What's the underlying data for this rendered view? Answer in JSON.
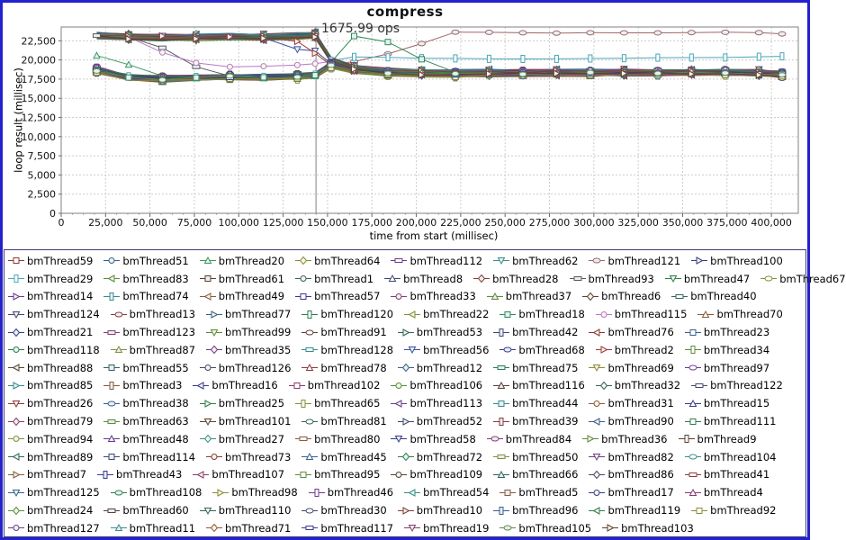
{
  "window": {
    "border_color": "#2421cd",
    "background": "#ffffff",
    "legend_border_color": "#3a3a78"
  },
  "chart_data": {
    "type": "line",
    "title": "compress",
    "xlabel": "time from start (millisec)",
    "ylabel": "loop result (millisec)",
    "xlim": [
      0,
      415000
    ],
    "ylim": [
      0,
      24300
    ],
    "xticks": [
      0,
      25000,
      50000,
      75000,
      100000,
      125000,
      150000,
      175000,
      200000,
      225000,
      250000,
      275000,
      300000,
      325000,
      350000,
      375000,
      400000
    ],
    "yticks": [
      0,
      2500,
      5000,
      7500,
      10000,
      12500,
      15000,
      17500,
      20000,
      22500
    ],
    "grid": "dashed",
    "legend_position": "bottom",
    "marker_line_x": 143500,
    "annotation": {
      "text": "1675.99 ops",
      "x": 146000,
      "y": 23900
    },
    "series_count": 128,
    "sample_times": [
      20000,
      38000,
      57000,
      76000,
      95000,
      114000,
      133000,
      143000,
      152000,
      165000,
      184000,
      203000,
      222000,
      241000,
      260000,
      279000,
      298000,
      317000,
      336000,
      355000,
      374000,
      393000,
      406000
    ],
    "default_clusters": [
      "low",
      "high"
    ],
    "special_series": {
      "2": "green_fall",
      "6": "red_tail",
      "8": "cyan_upper",
      "14": "gray_fall",
      "30": "green_spike",
      "31": "purple",
      "45": "early_drop",
      "47": "red_drop"
    },
    "clusters": {
      "high": {
        "color": null,
        "jitter": 700,
        "points": [
          [
            18000,
            23100
          ],
          [
            24000,
            23400
          ],
          [
            40000,
            22950
          ],
          [
            57000,
            22900
          ],
          [
            76000,
            22950
          ],
          [
            95000,
            23050
          ],
          [
            114000,
            23000
          ],
          [
            133000,
            23100
          ],
          [
            143000,
            23250
          ],
          [
            152000,
            20000
          ],
          [
            165000,
            18950
          ],
          [
            184000,
            18500
          ],
          [
            210000,
            18300
          ],
          [
            250000,
            18350
          ],
          [
            300000,
            18350
          ],
          [
            350000,
            18400
          ],
          [
            380000,
            18450
          ],
          [
            406000,
            18150
          ]
        ]
      },
      "low": {
        "color": null,
        "jitter": 700,
        "points": [
          [
            18000,
            18900
          ],
          [
            24000,
            18300
          ],
          [
            40000,
            17650
          ],
          [
            57000,
            17550
          ],
          [
            76000,
            17700
          ],
          [
            95000,
            17800
          ],
          [
            114000,
            17750
          ],
          [
            133000,
            17900
          ],
          [
            143000,
            18000
          ],
          [
            152000,
            19350
          ],
          [
            165000,
            18650
          ],
          [
            184000,
            18300
          ],
          [
            210000,
            18150
          ],
          [
            250000,
            18250
          ],
          [
            300000,
            18300
          ],
          [
            350000,
            18350
          ],
          [
            380000,
            18400
          ],
          [
            406000,
            18100
          ]
        ]
      },
      "green_fall": {
        "color": "#3c9a5f",
        "jitter": 0,
        "points": [
          [
            20000,
            20600
          ],
          [
            38000,
            19400
          ],
          [
            57000,
            17900
          ],
          [
            76000,
            17650
          ],
          [
            95000,
            17700
          ],
          [
            114000,
            17650
          ],
          [
            133000,
            17800
          ],
          [
            143000,
            17900
          ],
          [
            152000,
            19200
          ],
          [
            165000,
            18600
          ],
          [
            406000,
            18250
          ]
        ]
      },
      "red_tail": {
        "color": "#a06565",
        "jitter": 0,
        "points": [
          [
            20000,
            18900
          ],
          [
            24000,
            18350
          ],
          [
            40000,
            17700
          ],
          [
            57000,
            17600
          ],
          [
            76000,
            17700
          ],
          [
            95000,
            17800
          ],
          [
            114000,
            17750
          ],
          [
            133000,
            17900
          ],
          [
            143000,
            18000
          ],
          [
            152000,
            19400
          ],
          [
            170000,
            19900
          ],
          [
            190000,
            21200
          ],
          [
            205000,
            22300
          ],
          [
            222000,
            23650
          ],
          [
            250000,
            23600
          ],
          [
            275000,
            23500
          ],
          [
            300000,
            23550
          ],
          [
            325000,
            23500
          ],
          [
            350000,
            23550
          ],
          [
            375000,
            23600
          ],
          [
            390000,
            23600
          ],
          [
            406000,
            23400
          ]
        ]
      },
      "cyan_upper": {
        "color": "#4aa6b8",
        "jitter": 0,
        "points": [
          [
            20000,
            19000
          ],
          [
            24000,
            18400
          ],
          [
            40000,
            17800
          ],
          [
            57000,
            17700
          ],
          [
            76000,
            17800
          ],
          [
            95000,
            17850
          ],
          [
            114000,
            17800
          ],
          [
            133000,
            17950
          ],
          [
            143000,
            18100
          ],
          [
            152000,
            19900
          ],
          [
            165000,
            20400
          ],
          [
            200000,
            20250
          ],
          [
            250000,
            20100
          ],
          [
            300000,
            20200
          ],
          [
            350000,
            20300
          ],
          [
            380000,
            20350
          ],
          [
            406000,
            20500
          ]
        ]
      },
      "gray_fall": {
        "color": "#5a5a5a",
        "jitter": 0,
        "points": [
          [
            24000,
            23200
          ],
          [
            47000,
            22900
          ],
          [
            62000,
            20900
          ],
          [
            80000,
            18600
          ],
          [
            95000,
            17900
          ],
          [
            114000,
            17750
          ],
          [
            133000,
            17850
          ],
          [
            143000,
            17950
          ],
          [
            152000,
            19300
          ],
          [
            165000,
            18500
          ],
          [
            406000,
            18200
          ]
        ]
      },
      "green_spike": {
        "color": "#2e8b57",
        "jitter": 0,
        "points": [
          [
            18000,
            18800
          ],
          [
            24000,
            18300
          ],
          [
            40000,
            17650
          ],
          [
            57000,
            17550
          ],
          [
            76000,
            17700
          ],
          [
            95000,
            17800
          ],
          [
            114000,
            17750
          ],
          [
            133000,
            17900
          ],
          [
            143000,
            18000
          ],
          [
            152000,
            19700
          ],
          [
            164000,
            23150
          ],
          [
            187000,
            22250
          ],
          [
            205000,
            19800
          ],
          [
            215000,
            18500
          ],
          [
            230000,
            18300
          ],
          [
            406000,
            18350
          ]
        ]
      },
      "purple": {
        "color": "#b678c8",
        "jitter": 0,
        "points": [
          [
            24000,
            23300
          ],
          [
            40000,
            22900
          ],
          [
            62000,
            20400
          ],
          [
            86000,
            19050
          ],
          [
            110000,
            19150
          ],
          [
            134000,
            19350
          ],
          [
            143000,
            19500
          ],
          [
            152000,
            19800
          ],
          [
            165000,
            18700
          ],
          [
            184000,
            18400
          ],
          [
            406000,
            18300
          ]
        ]
      },
      "early_drop": {
        "color": "#3a4f9f",
        "jitter": 0,
        "points": [
          [
            20000,
            23300
          ],
          [
            76000,
            23000
          ],
          [
            114000,
            22900
          ],
          [
            124000,
            22800
          ],
          [
            133000,
            21400
          ],
          [
            138000,
            20800
          ],
          [
            143000,
            21200
          ],
          [
            152000,
            19500
          ],
          [
            165000,
            18800
          ],
          [
            184000,
            18500
          ],
          [
            406000,
            18400
          ]
        ]
      },
      "red_drop": {
        "color": "#9f3a3a",
        "jitter": 0,
        "points": [
          [
            20000,
            23200
          ],
          [
            95000,
            23000
          ],
          [
            124000,
            22900
          ],
          [
            133000,
            22400
          ],
          [
            140000,
            20600
          ],
          [
            143000,
            20900
          ],
          [
            152000,
            19300
          ],
          [
            165000,
            18550
          ],
          [
            184000,
            18350
          ],
          [
            406000,
            18300
          ]
        ]
      }
    },
    "colors": {
      "palette": [
        "#8b3a3a",
        "#3a5f8b",
        "#2e7d4f",
        "#8b8b3a",
        "#6f3a8b",
        "#3a8b8b",
        "#8b5a3a",
        "#3a3a8b",
        "#8b3a6f",
        "#5f8b3a",
        "#5c4033",
        "#33645c",
        "#44486e"
      ],
      "marker_fills": [
        "#ffffff",
        "#e6f7ee",
        "#e6f0f7",
        "#f7f7e6"
      ],
      "grid": "#cccccc",
      "axis": "#666666",
      "plot_border": "#808080",
      "marker_line": "#808080",
      "tick_label": "#111111"
    }
  },
  "legend": {
    "rows": [
      [
        "bmThread59",
        "bmThread51",
        "bmThread20",
        "bmThread64",
        "bmThread112",
        "bmThread62",
        "bmThread121",
        "bmThread100"
      ],
      [
        "bmThread29",
        "bmThread83",
        "bmThread61",
        "bmThread1",
        "bmThread8",
        "bmThread28",
        "bmThread93",
        "bmThread47",
        "bmThread67"
      ],
      [
        "bmThread14",
        "bmThread74",
        "bmThread49",
        "bmThread57",
        "bmThread33",
        "bmThread37",
        "bmThread6",
        "bmThread40"
      ],
      [
        "bmThread124",
        "bmThread13",
        "bmThread77",
        "bmThread120",
        "bmThread22",
        "bmThread18",
        "bmThread115",
        "bmThread70"
      ],
      [
        "bmThread21",
        "bmThread123",
        "bmThread99",
        "bmThread91",
        "bmThread53",
        "bmThread42",
        "bmThread76",
        "bmThread23"
      ],
      [
        "bmThread118",
        "bmThread87",
        "bmThread35",
        "bmThread128",
        "bmThread56",
        "bmThread68",
        "bmThread2",
        "bmThread34"
      ],
      [
        "bmThread88",
        "bmThread55",
        "bmThread126",
        "bmThread78",
        "bmThread12",
        "bmThread75",
        "bmThread69",
        "bmThread97"
      ],
      [
        "bmThread85",
        "bmThread3",
        "bmThread16",
        "bmThread102",
        "bmThread106",
        "bmThread116",
        "bmThread32",
        "bmThread122"
      ],
      [
        "bmThread26",
        "bmThread38",
        "bmThread25",
        "bmThread65",
        "bmThread113",
        "bmThread44",
        "bmThread31",
        "bmThread15"
      ],
      [
        "bmThread79",
        "bmThread63",
        "bmThread101",
        "bmThread81",
        "bmThread52",
        "bmThread39",
        "bmThread90",
        "bmThread111"
      ],
      [
        "bmThread94",
        "bmThread48",
        "bmThread27",
        "bmThread80",
        "bmThread58",
        "bmThread84",
        "bmThread36",
        "bmThread9"
      ],
      [
        "bmThread89",
        "bmThread114",
        "bmThread73",
        "bmThread45",
        "bmThread72",
        "bmThread50",
        "bmThread82",
        "bmThread104"
      ],
      [
        "bmThread7",
        "bmThread43",
        "bmThread107",
        "bmThread95",
        "bmThread109",
        "bmThread66",
        "bmThread86",
        "bmThread41"
      ],
      [
        "bmThread125",
        "bmThread108",
        "bmThread98",
        "bmThread46",
        "bmThread54",
        "bmThread5",
        "bmThread17",
        "bmThread4"
      ],
      [
        "bmThread24",
        "bmThread60",
        "bmThread110",
        "bmThread30",
        "bmThread10",
        "bmThread96",
        "bmThread119",
        "bmThread92"
      ],
      [
        "bmThread127",
        "bmThread11",
        "bmThread71",
        "bmThread117",
        "bmThread19",
        "bmThread105",
        "bmThread103"
      ]
    ]
  }
}
